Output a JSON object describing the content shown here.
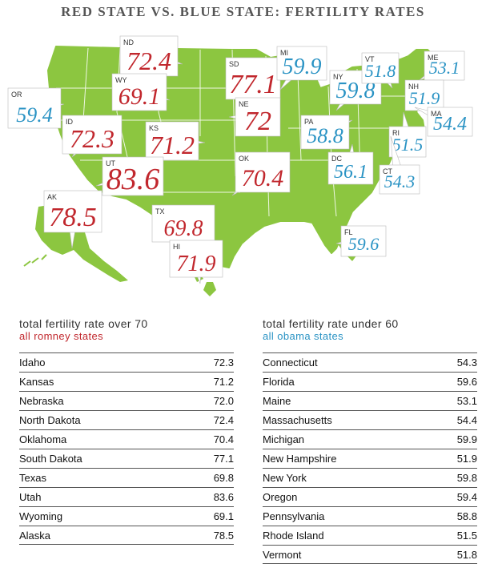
{
  "title": "RED STATE VS. BLUE STATE: FERTILITY RATES",
  "colors": {
    "red": "#c1272d",
    "blue": "#2a93c4",
    "land": "#8cc640",
    "title": "#555555"
  },
  "callouts": [
    {
      "code": "OR",
      "value": "59.4",
      "party": "blue"
    },
    {
      "code": "ND",
      "value": "72.4",
      "party": "red"
    },
    {
      "code": "WY",
      "value": "69.1",
      "party": "red"
    },
    {
      "code": "ID",
      "value": "72.3",
      "party": "red"
    },
    {
      "code": "SD",
      "value": "77.1",
      "party": "red"
    },
    {
      "code": "NE",
      "value": "72",
      "party": "red"
    },
    {
      "code": "KS",
      "value": "71.2",
      "party": "red"
    },
    {
      "code": "UT",
      "value": "83.6",
      "party": "red"
    },
    {
      "code": "OK",
      "value": "70.4",
      "party": "red"
    },
    {
      "code": "AK",
      "value": "78.5",
      "party": "red"
    },
    {
      "code": "TX",
      "value": "69.8",
      "party": "red"
    },
    {
      "code": "HI",
      "value": "71.9",
      "party": "red"
    },
    {
      "code": "MI",
      "value": "59.9",
      "party": "blue"
    },
    {
      "code": "NY",
      "value": "59.8",
      "party": "blue"
    },
    {
      "code": "VT",
      "value": "51.8",
      "party": "blue"
    },
    {
      "code": "ME",
      "value": "53.1",
      "party": "blue"
    },
    {
      "code": "NH",
      "value": "51.9",
      "party": "blue"
    },
    {
      "code": "MA",
      "value": "54.4",
      "party": "blue"
    },
    {
      "code": "PA",
      "value": "58.8",
      "party": "blue"
    },
    {
      "code": "RI",
      "value": "51.5",
      "party": "blue"
    },
    {
      "code": "DC",
      "value": "56.1",
      "party": "blue"
    },
    {
      "code": "CT",
      "value": "54.3",
      "party": "blue"
    },
    {
      "code": "FL",
      "value": "59.6",
      "party": "blue"
    }
  ],
  "tables": {
    "left": {
      "heading": "total fertility rate over 70",
      "subheading": "all romney states",
      "rows": [
        {
          "state": "Idaho",
          "value": "72.3"
        },
        {
          "state": "Kansas",
          "value": "71.2"
        },
        {
          "state": "Nebraska",
          "value": "72.0"
        },
        {
          "state": "North Dakota",
          "value": "72.4"
        },
        {
          "state": "Oklahoma",
          "value": "70.4"
        },
        {
          "state": "South Dakota",
          "value": "77.1"
        },
        {
          "state": "Texas",
          "value": "69.8"
        },
        {
          "state": "Utah",
          "value": "83.6"
        },
        {
          "state": "Wyoming",
          "value": "69.1"
        },
        {
          "state": "Alaska",
          "value": "78.5"
        }
      ]
    },
    "right": {
      "heading": "total fertility rate under 60",
      "subheading": "all obama states",
      "rows": [
        {
          "state": "Connecticut",
          "value": "54.3"
        },
        {
          "state": "Florida",
          "value": "59.6"
        },
        {
          "state": "Maine",
          "value": "53.1"
        },
        {
          "state": "Massachusetts",
          "value": "54.4"
        },
        {
          "state": "Michigan",
          "value": "59.9"
        },
        {
          "state": "New Hampshire",
          "value": "51.9"
        },
        {
          "state": "New York",
          "value": "59.8"
        },
        {
          "state": "Oregon",
          "value": "59.4"
        },
        {
          "state": "Pennsylvania",
          "value": "58.8"
        },
        {
          "state": "Rhode Island",
          "value": "51.5"
        },
        {
          "state": "Vermont",
          "value": "51.8"
        }
      ]
    }
  }
}
